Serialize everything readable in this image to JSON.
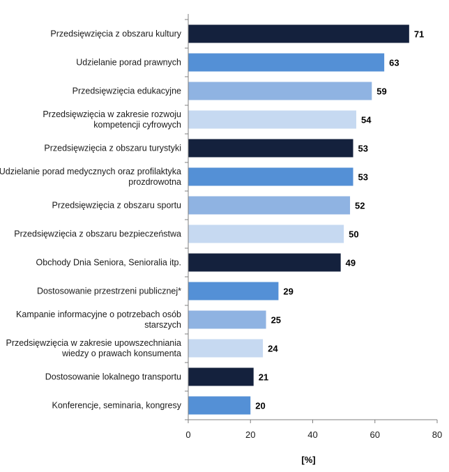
{
  "chart_data": {
    "type": "bar",
    "orientation": "horizontal",
    "categories": [
      [
        "Przedsięwzięcia z obszaru kultury"
      ],
      [
        "Udzielanie porad prawnych"
      ],
      [
        "Przedsięwzięcia edukacyjne"
      ],
      [
        "Przedsięwzięcia w zakresie rozwoju",
        "kompetencji cyfrowych"
      ],
      [
        "Przedsięwzięcia z obszaru turystyki"
      ],
      [
        "Udzielanie porad medycznych oraz profilaktyka",
        "prozdrowotna"
      ],
      [
        "Przedsięwzięcia z obszaru sportu"
      ],
      [
        "Przedsięwzięcia z obszaru bezpieczeństwa"
      ],
      [
        "Obchody Dnia Seniora, Senioralia itp."
      ],
      [
        "Dostosowanie przestrzeni publicznej*"
      ],
      [
        "Kampanie informacyjne o potrzebach osób",
        "starszych"
      ],
      [
        "Przedsięwzięcia w zakresie upowszechniania",
        "wiedzy o prawach konsumenta"
      ],
      [
        "Dostosowanie lokalnego transportu"
      ],
      [
        "Konferencje, seminaria, kongresy"
      ]
    ],
    "values": [
      71,
      63,
      59,
      54,
      53,
      53,
      52,
      50,
      49,
      29,
      25,
      24,
      21,
      20
    ],
    "value_labels": [
      "71",
      "63",
      "59",
      "54",
      "53",
      "53",
      "52",
      "50",
      "49",
      "29",
      "25",
      "24",
      "21",
      "20"
    ],
    "bar_colors": [
      "#14213d",
      "#5490d6",
      "#8fb3e2",
      "#c6d9f1",
      "#14213d",
      "#5490d6",
      "#8fb3e2",
      "#c6d9f1",
      "#14213d",
      "#5490d6",
      "#8fb3e2",
      "#c6d9f1",
      "#14213d",
      "#5490d6"
    ],
    "xlim": [
      0,
      80
    ],
    "xticks": [
      0,
      20,
      40,
      60,
      80
    ],
    "xtick_labels": [
      "0",
      "20",
      "40",
      "60",
      "80"
    ],
    "xlabel": "[%]",
    "ylabel": "",
    "title": "",
    "grid": false,
    "legend": "none"
  }
}
